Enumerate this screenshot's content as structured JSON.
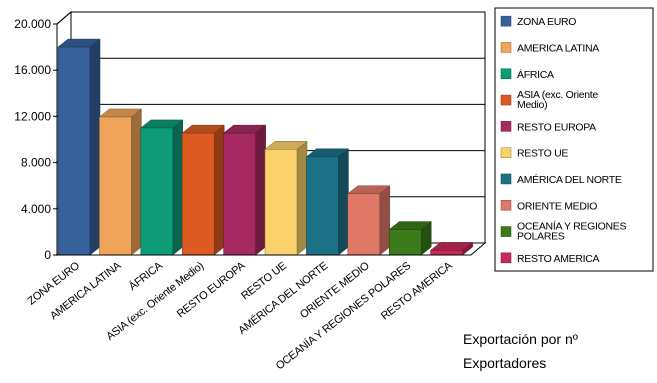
{
  "chart_data": {
    "type": "bar",
    "categories": [
      "ZONA EURO",
      "AMERICA LATINA",
      "ÁFRICA",
      "ASIA (exc. Oriente Medio)",
      "RESTO EUROPA",
      "RESTO UE",
      "AMÉRICA DEL NORTE",
      "ORIENTE MEDIO",
      "OCEANÍA Y REGIONES POLARES",
      "RESTO AMERICA"
    ],
    "legend_labels": [
      "ZONA EURO",
      "AMERICA LATINA",
      "ÁFRICA",
      "ASIA (exc. Oriente Medio)",
      "RESTO EUROPA",
      "RESTO UE",
      "AMÉRICA DEL NORTE",
      "ORIENTE MEDIO",
      "OCEANÍA Y REGIONES POLARES",
      "RESTO AMERICA"
    ],
    "values": [
      18000,
      11950,
      11000,
      10550,
      10550,
      9150,
      8500,
      5300,
      2200,
      400
    ],
    "colors": [
      "#36619B",
      "#F0A45A",
      "#0E9B77",
      "#DD5A22",
      "#A62A61",
      "#FAD16A",
      "#1D7187",
      "#E07868",
      "#3B7B1A",
      "#C72A58"
    ],
    "ylim": [
      0,
      20000
    ],
    "yticks": [
      "0",
      "4.000",
      "8.000",
      "12.000",
      "16.000",
      "20.000"
    ],
    "ytick_values": [
      0,
      4000,
      8000,
      12000,
      16000,
      20000
    ],
    "grid": true,
    "legend_position": "right",
    "style": "3d-bar"
  },
  "caption": {
    "line1": "Exportación por nº",
    "line2": "Exportadores"
  }
}
